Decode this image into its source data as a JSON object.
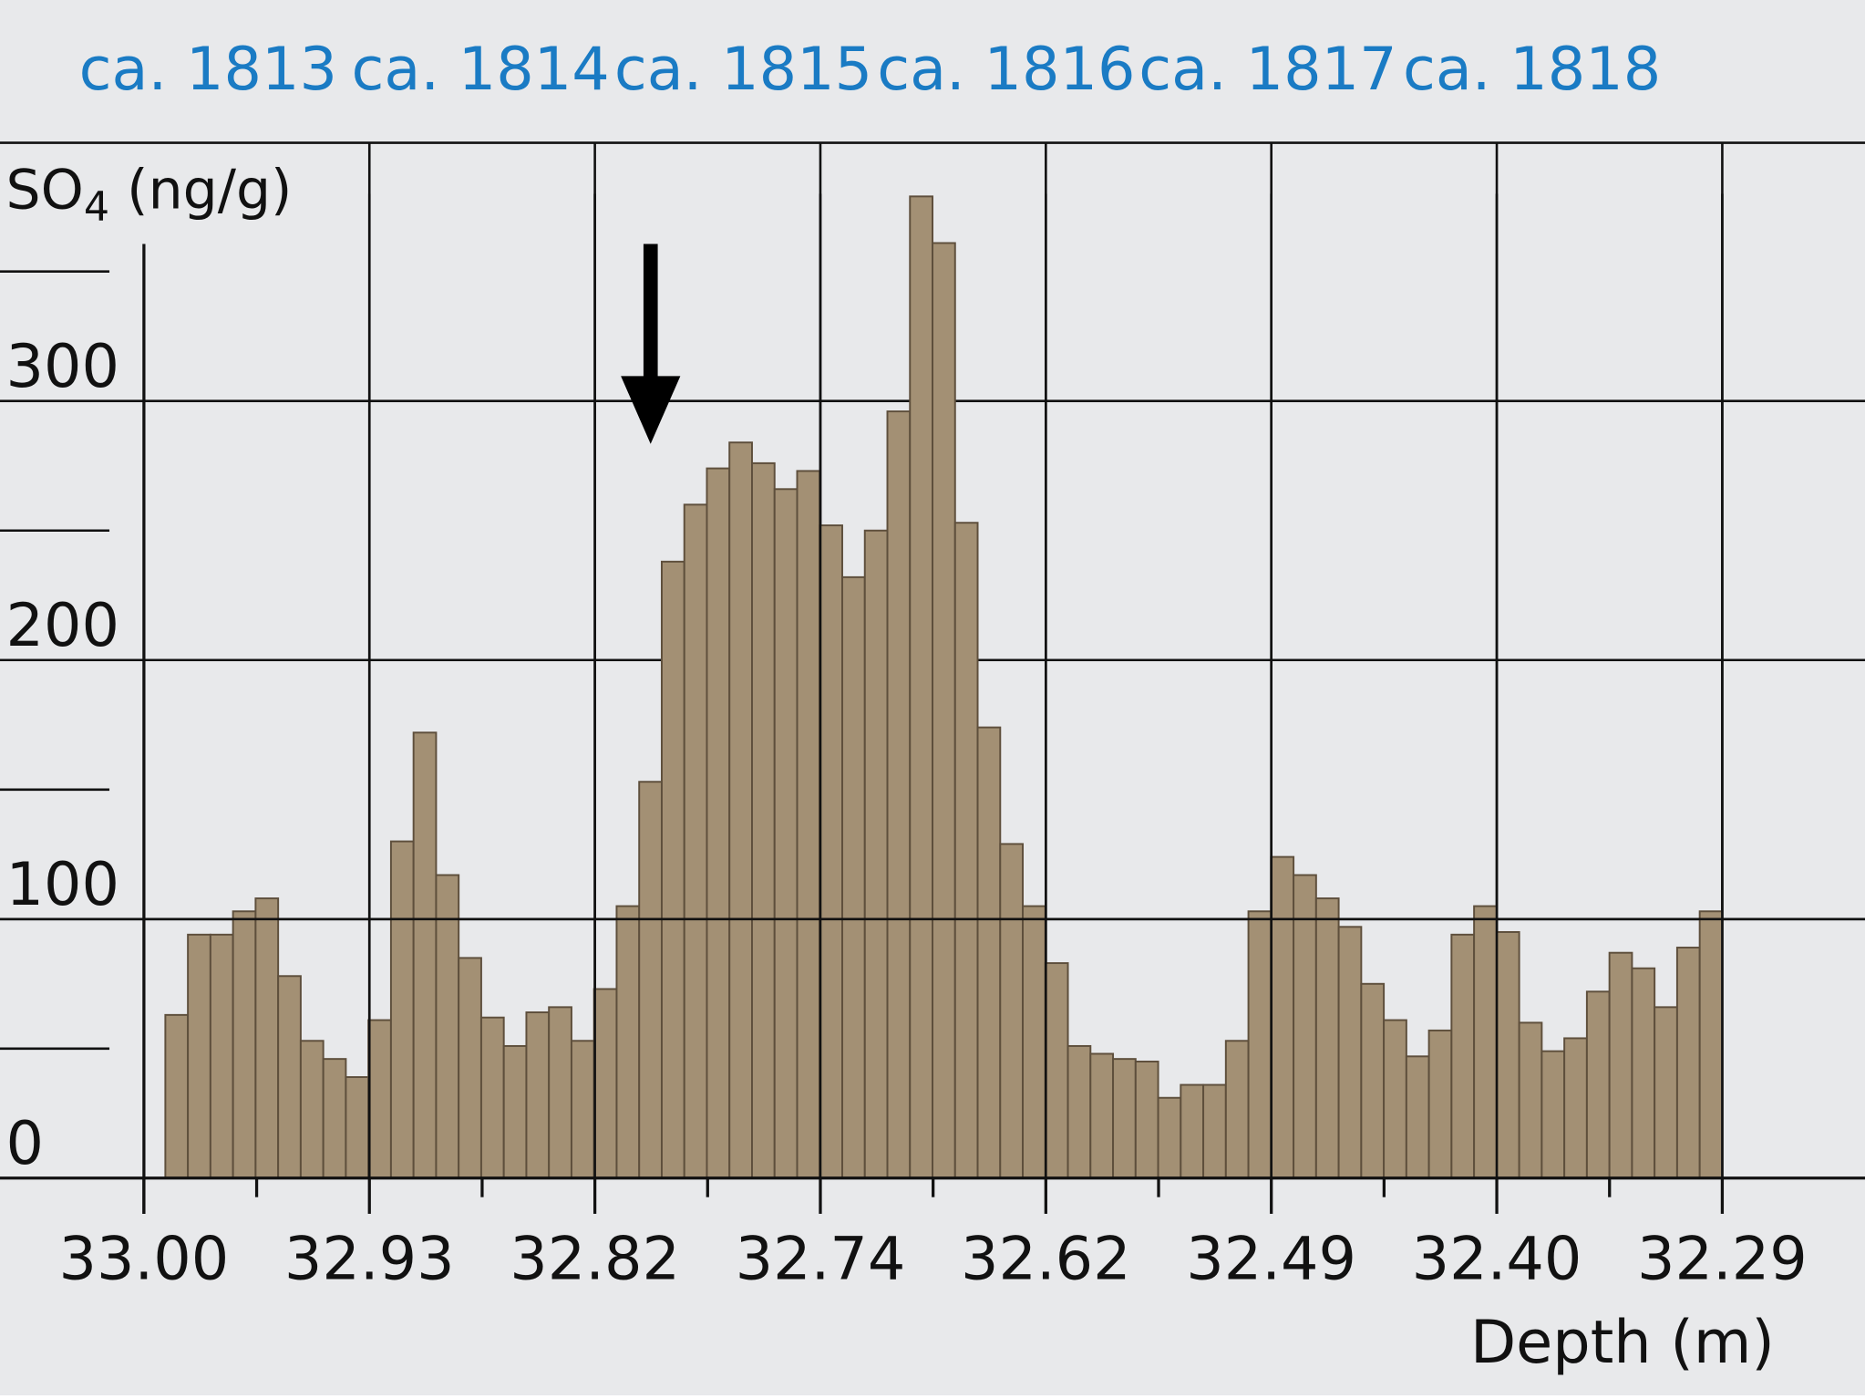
{
  "chart_data": {
    "type": "bar",
    "ylabel": "SO",
    "ylabel_sub": "4",
    "ylabel_unit": "(ng/g)",
    "xlabel": "Depth (m)",
    "ylim": [
      0,
      380
    ],
    "y_ticks": [
      0,
      100,
      200,
      300
    ],
    "y_minor_ticks": [
      50,
      150,
      250,
      350
    ],
    "x_tick_labels": [
      "33.00",
      "32.93",
      "32.82",
      "32.74",
      "32.62",
      "32.49",
      "32.40",
      "32.29"
    ],
    "year_labels": [
      "ca. 1813",
      "ca. 1814",
      "ca. 1815",
      "ca. 1816",
      "ca. 1817",
      "ca. 1818"
    ],
    "grid": true,
    "annotation": "down-arrow",
    "colors": {
      "bar": "#a39074",
      "bar_edge": "#5e4f3c",
      "year_text": "#1a7bc4",
      "background": "#e8e9eb"
    },
    "values": [
      63,
      94,
      94,
      103,
      108,
      78,
      53,
      46,
      39,
      61,
      130,
      172,
      117,
      85,
      62,
      51,
      64,
      66,
      53,
      73,
      105,
      153,
      238,
      260,
      274,
      284,
      276,
      266,
      273,
      252,
      232,
      250,
      296,
      379,
      361,
      253,
      174,
      129,
      105,
      83,
      51,
      48,
      46,
      45,
      31,
      36,
      36,
      53,
      103,
      124,
      117,
      108,
      97,
      75,
      61,
      47,
      57,
      94,
      105,
      95,
      60,
      49,
      54,
      72,
      87,
      81,
      66,
      89,
      103
    ]
  }
}
